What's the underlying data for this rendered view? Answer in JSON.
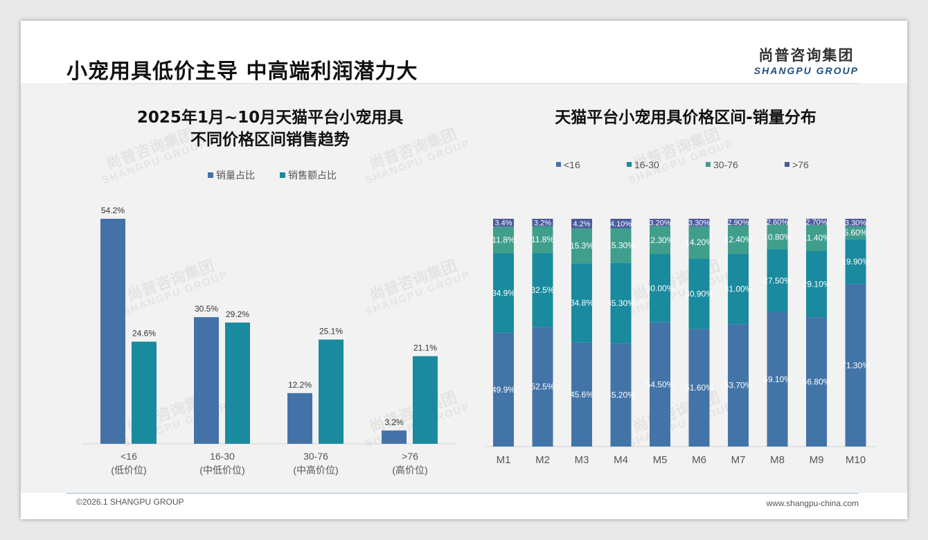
{
  "header": {
    "title": "小宠用具低价主导 中高端利润潜力大",
    "logo_cn": "尚普咨询集团",
    "logo_en": "SHANGPU GROUP"
  },
  "footer": {
    "copyright": "©2026.1 SHANGPU GROUP",
    "website": "www.shangpu-china.com"
  },
  "watermark": {
    "cn": "尚普咨询集团",
    "en": "SHANGPU GROUP"
  },
  "chart_data": [
    {
      "type": "bar",
      "title": "2025年1月~10月天猫平台小宠用具",
      "subtitle": "不同价格区间销售趋势",
      "categories": [
        "<16",
        "16-30",
        "30-76",
        ">76"
      ],
      "category_sublabels": [
        "(低价位)",
        "(中低价位)",
        "(中高价位)",
        "(高价位)"
      ],
      "series": [
        {
          "name": "销量占比",
          "color": "#4472a8",
          "values": [
            54.2,
            30.5,
            12.2,
            3.2
          ],
          "labels": [
            "54.2%",
            "30.5%",
            "12.2%",
            "3.2%"
          ]
        },
        {
          "name": "销售额占比",
          "color": "#1a8a9e",
          "values": [
            24.6,
            29.2,
            25.1,
            21.1
          ],
          "labels": [
            "24.6%",
            "29.2%",
            "25.1%",
            "21.1%"
          ]
        }
      ],
      "ylim": [
        0,
        54.2
      ],
      "legend": "top-center",
      "grid": false
    },
    {
      "type": "bar",
      "stacked": true,
      "title": "天猫平台小宠用具价格区间-销量分布",
      "categories": [
        "M1",
        "M2",
        "M3",
        "M4",
        "M5",
        "M6",
        "M7",
        "M8",
        "M9",
        "M10"
      ],
      "series": [
        {
          "name": "<16",
          "color": "#4374a8",
          "values": [
            49.9,
            52.5,
            45.6,
            45.2,
            54.5,
            51.6,
            53.7,
            59.1,
            56.8,
            71.3
          ],
          "labels": [
            "49.9%",
            "52.5%",
            "45.6%",
            "45.20%",
            "54.50%",
            "51.60%",
            "53.70%",
            "59.10%",
            "56.80%",
            "71.30%"
          ]
        },
        {
          "name": "16-30",
          "color": "#1a8a9e",
          "values": [
            34.9,
            32.5,
            34.8,
            35.3,
            30.0,
            30.9,
            31.0,
            27.5,
            29.1,
            19.9
          ],
          "labels": [
            "34.9%",
            "32.5%",
            "34.8%",
            "35.30%",
            "30.00%",
            "30.90%",
            "31.00%",
            "27.50%",
            "29.10%",
            "19.90%"
          ]
        },
        {
          "name": "30-76",
          "color": "#3f9e8c",
          "values": [
            11.8,
            11.8,
            15.3,
            15.3,
            12.3,
            14.2,
            12.4,
            10.8,
            11.4,
            5.6
          ],
          "labels": [
            "11.8%",
            "11.8%",
            "15.3%",
            "15.30%",
            "12.30%",
            "14.20%",
            "12.40%",
            "10.80%",
            "11.40%",
            "5.60%"
          ]
        },
        {
          "name": ">76",
          "color": "#4a5a9c",
          "values": [
            3.4,
            3.2,
            4.2,
            4.1,
            3.2,
            3.3,
            2.9,
            2.6,
            2.7,
            3.3
          ],
          "labels": [
            "3.4%",
            "3.2%",
            "4.2%",
            "4.10%",
            "3.20%",
            "3.30%",
            "2.90%",
            "2.60%",
            "2.70%",
            "3.30%"
          ]
        }
      ],
      "ylim": [
        0,
        100
      ],
      "legend": "top-center",
      "grid": false
    }
  ]
}
